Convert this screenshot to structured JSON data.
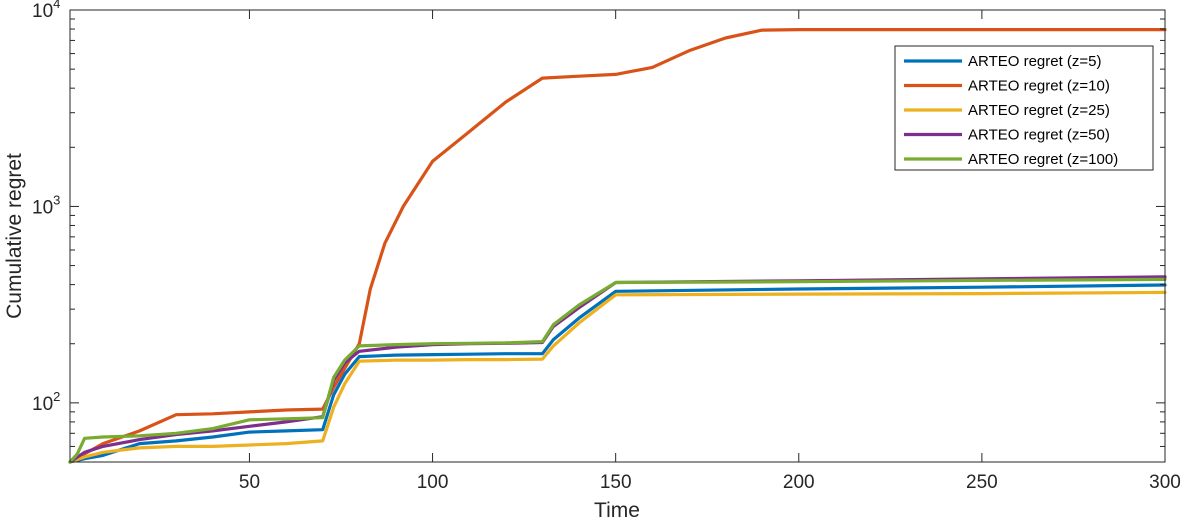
{
  "chart_data": {
    "type": "line",
    "xlabel": "Time",
    "ylabel": "Cumulative regret",
    "xlim": [
      1,
      300
    ],
    "ylim": [
      50,
      10000
    ],
    "yscale": "log",
    "grid": false,
    "legend_position": "top-right",
    "x_ticks": [
      50,
      100,
      150,
      200,
      250,
      300
    ],
    "x_tick_labels": [
      "50",
      "100",
      "150",
      "200",
      "250",
      "300"
    ],
    "y_ticks": [
      {
        "value": 100,
        "base": "10",
        "exp": "2"
      },
      {
        "value": 1000,
        "base": "10",
        "exp": "3"
      },
      {
        "value": 10000,
        "base": "10",
        "exp": "4"
      }
    ],
    "series": [
      {
        "name": "ARTEO regret (z=5)",
        "color": "#0072BD",
        "points": [
          [
            1,
            50
          ],
          [
            5,
            52
          ],
          [
            10,
            54
          ],
          [
            20,
            62
          ],
          [
            30,
            64
          ],
          [
            40,
            67
          ],
          [
            50,
            71
          ],
          [
            60,
            72
          ],
          [
            70,
            73
          ],
          [
            73,
            110
          ],
          [
            76,
            140
          ],
          [
            80,
            172
          ],
          [
            90,
            175
          ],
          [
            100,
            176
          ],
          [
            110,
            177
          ],
          [
            120,
            178
          ],
          [
            130,
            178
          ],
          [
            133,
            210
          ],
          [
            140,
            270
          ],
          [
            150,
            370
          ],
          [
            200,
            380
          ],
          [
            250,
            388
          ],
          [
            300,
            398
          ]
        ]
      },
      {
        "name": "ARTEO regret (z=10)",
        "color": "#D95319",
        "points": [
          [
            1,
            50
          ],
          [
            5,
            55
          ],
          [
            10,
            62
          ],
          [
            20,
            72
          ],
          [
            30,
            87
          ],
          [
            40,
            88
          ],
          [
            50,
            90
          ],
          [
            60,
            92
          ],
          [
            70,
            93
          ],
          [
            73,
            120
          ],
          [
            76,
            150
          ],
          [
            80,
            200
          ],
          [
            83,
            380
          ],
          [
            87,
            650
          ],
          [
            92,
            1000
          ],
          [
            100,
            1700
          ],
          [
            110,
            2400
          ],
          [
            120,
            3400
          ],
          [
            130,
            4500
          ],
          [
            140,
            4600
          ],
          [
            150,
            4700
          ],
          [
            160,
            5100
          ],
          [
            170,
            6200
          ],
          [
            180,
            7200
          ],
          [
            190,
            7900
          ],
          [
            200,
            7950
          ],
          [
            250,
            7950
          ],
          [
            300,
            7950
          ]
        ]
      },
      {
        "name": "ARTEO regret (z=25)",
        "color": "#EDB120",
        "points": [
          [
            1,
            50
          ],
          [
            5,
            53
          ],
          [
            10,
            56
          ],
          [
            20,
            59
          ],
          [
            30,
            60
          ],
          [
            40,
            60
          ],
          [
            50,
            61
          ],
          [
            60,
            62
          ],
          [
            70,
            64
          ],
          [
            73,
            95
          ],
          [
            76,
            125
          ],
          [
            80,
            163
          ],
          [
            90,
            165
          ],
          [
            100,
            165
          ],
          [
            110,
            166
          ],
          [
            120,
            166
          ],
          [
            130,
            167
          ],
          [
            133,
            195
          ],
          [
            140,
            255
          ],
          [
            150,
            355
          ],
          [
            200,
            358
          ],
          [
            250,
            360
          ],
          [
            300,
            365
          ]
        ]
      },
      {
        "name": "ARTEO regret (z=50)",
        "color": "#7E2F8E",
        "points": [
          [
            1,
            50
          ],
          [
            5,
            56
          ],
          [
            10,
            60
          ],
          [
            20,
            65
          ],
          [
            30,
            69
          ],
          [
            40,
            72
          ],
          [
            50,
            76
          ],
          [
            60,
            80
          ],
          [
            70,
            85
          ],
          [
            73,
            130
          ],
          [
            76,
            160
          ],
          [
            80,
            183
          ],
          [
            90,
            192
          ],
          [
            100,
            198
          ],
          [
            110,
            200
          ],
          [
            120,
            201
          ],
          [
            130,
            203
          ],
          [
            133,
            245
          ],
          [
            140,
            305
          ],
          [
            150,
            410
          ],
          [
            200,
            418
          ],
          [
            250,
            428
          ],
          [
            300,
            438
          ]
        ]
      },
      {
        "name": "ARTEO regret (z=100)",
        "color": "#77AC30",
        "points": [
          [
            1,
            50
          ],
          [
            3,
            55
          ],
          [
            5,
            66
          ],
          [
            10,
            67
          ],
          [
            20,
            68
          ],
          [
            30,
            70
          ],
          [
            40,
            74
          ],
          [
            50,
            82
          ],
          [
            60,
            83
          ],
          [
            70,
            84
          ],
          [
            73,
            135
          ],
          [
            76,
            165
          ],
          [
            80,
            195
          ],
          [
            90,
            198
          ],
          [
            100,
            200
          ],
          [
            110,
            201
          ],
          [
            120,
            202
          ],
          [
            130,
            205
          ],
          [
            133,
            250
          ],
          [
            140,
            315
          ],
          [
            150,
            410
          ],
          [
            200,
            414
          ],
          [
            250,
            420
          ],
          [
            300,
            425
          ]
        ]
      }
    ]
  }
}
